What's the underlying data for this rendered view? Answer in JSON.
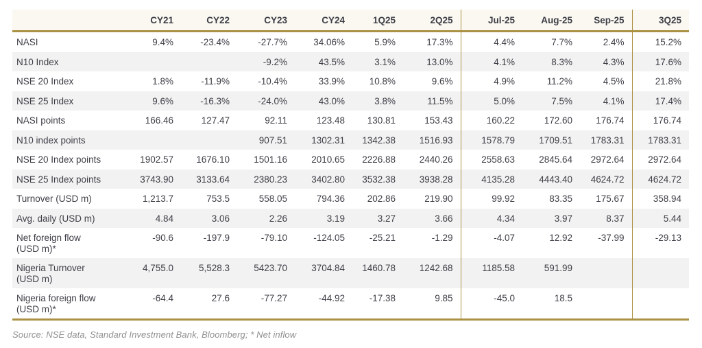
{
  "table": {
    "columns": [
      "CY21",
      "CY22",
      "CY23",
      "CY24",
      "1Q25",
      "2Q25",
      "Jul-25",
      "Aug-25",
      "Sep-25",
      "3Q25"
    ],
    "rows": [
      {
        "label": "NASI",
        "values": [
          "9.4%",
          "-23.4%",
          "-27.7%",
          "34.06%",
          "5.9%",
          "17.3%",
          "4.4%",
          "7.7%",
          "2.4%",
          "15.2%"
        ]
      },
      {
        "label": "N10 Index",
        "values": [
          "",
          "",
          "-9.2%",
          "43.5%",
          "3.1%",
          "13.0%",
          "4.1%",
          "8.3%",
          "4.3%",
          "17.6%"
        ]
      },
      {
        "label": "NSE 20 Index",
        "values": [
          "1.8%",
          "-11.9%",
          "-10.4%",
          "33.9%",
          "10.8%",
          "9.6%",
          "4.9%",
          "11.2%",
          "4.5%",
          "21.8%"
        ]
      },
      {
        "label": "NSE 25 Index",
        "values": [
          "9.6%",
          "-16.3%",
          "-24.0%",
          "43.0%",
          "3.8%",
          "11.5%",
          "5.0%",
          "7.5%",
          "4.1%",
          "17.4%"
        ]
      },
      {
        "label": "NASI points",
        "values": [
          "166.46",
          "127.47",
          "92.11",
          "123.48",
          "130.81",
          "153.43",
          "160.22",
          "172.60",
          "176.74",
          "176.74"
        ]
      },
      {
        "label": "N10 index points",
        "values": [
          "",
          "",
          "907.51",
          "1302.31",
          "1342.38",
          "1516.93",
          "1578.79",
          "1709.51",
          "1783.31",
          "1783.31"
        ]
      },
      {
        "label": "NSE 20 Index points",
        "values": [
          "1902.57",
          "1676.10",
          "1501.16",
          "2010.65",
          "2226.88",
          "2440.26",
          "2558.63",
          "2845.64",
          "2972.64",
          "2972.64"
        ]
      },
      {
        "label": "NSE 25 Index points",
        "values": [
          "3743.90",
          "3133.64",
          "2380.23",
          "3402.80",
          "3532.38",
          "3938.28",
          "4135.28",
          "4443.40",
          "4624.72",
          "4624.72"
        ]
      },
      {
        "label": "Turnover (USD m)",
        "values": [
          "1,213.7",
          "753.5",
          "558.05",
          "794.36",
          "202.86",
          "219.90",
          "99.92",
          "83.35",
          "175.67",
          "358.94"
        ]
      },
      {
        "label": "Avg. daily (USD m)",
        "values": [
          "4.84",
          "3.06",
          "2.26",
          "3.19",
          "3.27",
          "3.66",
          "4.34",
          "3.97",
          "8.37",
          "5.44"
        ]
      },
      {
        "label": "Net foreign flow",
        "label2": "(USD m)*",
        "values": [
          "-90.6",
          "-197.9",
          "-79.10",
          "-124.05",
          "-25.21",
          "-1.29",
          "-4.07",
          "12.92",
          "-37.99",
          "-29.13"
        ]
      },
      {
        "label": "Nigeria Turnover",
        "label2": "(USD m)",
        "values": [
          "4,755.0",
          "5,528.3",
          "5423.70",
          "3704.84",
          "1460.78",
          "1242.68",
          "1185.58",
          "591.99",
          "",
          ""
        ]
      },
      {
        "label": "Nigeria foreign flow",
        "label2": "(USD m)*",
        "values": [
          "-64.4",
          "27.6",
          "-77.27",
          "-44.92",
          "-17.38",
          "9.85",
          "-45.0",
          "18.5",
          "",
          ""
        ]
      }
    ]
  },
  "source_note": "Source: NSE data, Standard Investment Bank, Bloomberg; * Net inflow",
  "colors": {
    "accent_gold": "#ab9143",
    "header_bg": "#faf8f1",
    "row_stripe": "#f2f2f2",
    "text": "#3e3e47",
    "source_text": "#8f8f8f"
  }
}
